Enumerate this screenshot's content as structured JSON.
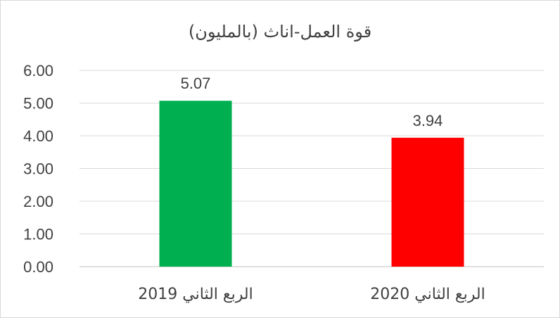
{
  "chart_data": {
    "type": "bar",
    "title": "قوة العمل-اناث (بالمليون)",
    "categories": [
      "الربع الثاني 2019",
      "الربع الثاني 2020"
    ],
    "values": [
      5.07,
      3.94
    ],
    "value_labels": [
      "5.07",
      "3.94"
    ],
    "colors": [
      "#00b050",
      "#ff0000"
    ],
    "ylim": [
      0,
      6
    ],
    "yticks": [
      "0.00",
      "1.00",
      "2.00",
      "3.00",
      "4.00",
      "5.00",
      "6.00"
    ],
    "grid": true,
    "legend": "none"
  }
}
